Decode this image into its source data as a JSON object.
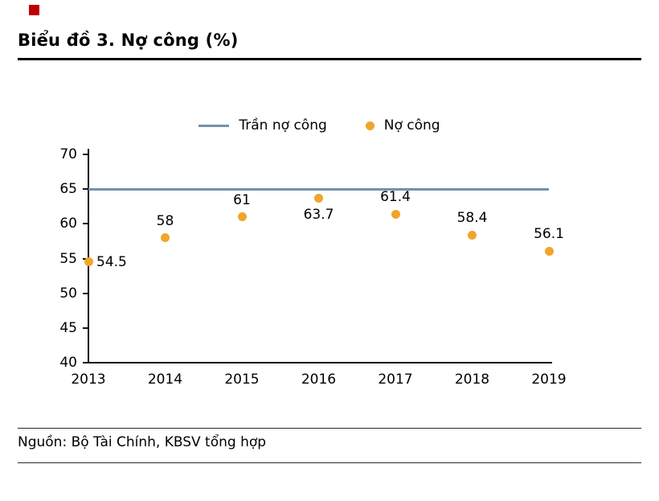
{
  "header": {
    "title": "Biểu đồ 3. Nợ công (%)"
  },
  "legend": {
    "ceiling_label": "Trần nợ công",
    "series_label": "Nợ công"
  },
  "footer": {
    "source": "Nguồn: Bộ Tài Chính, KBSV tổng hợp"
  },
  "colors": {
    "accent": "#C00000",
    "ceiling_line": "#7590AC",
    "dot": "#F0A52C",
    "axis": "#111111"
  },
  "chart_data": {
    "type": "scatter",
    "title": "Biểu đồ 3. Nợ công (%)",
    "categories": [
      "2013",
      "2014",
      "2015",
      "2016",
      "2017",
      "2018",
      "2019"
    ],
    "series": [
      {
        "name": "Nợ công",
        "values": [
          54.5,
          58,
          61,
          63.7,
          61.4,
          58.4,
          56.1
        ]
      }
    ],
    "ceiling": {
      "name": "Trần nợ công",
      "value": 65
    },
    "ylim": [
      40,
      70
    ],
    "yticks": [
      40,
      45,
      50,
      55,
      60,
      65,
      70
    ],
    "grid": false,
    "legend_position": "top",
    "label_positions": [
      "right",
      "above",
      "above",
      "below",
      "above",
      "above",
      "above"
    ]
  }
}
